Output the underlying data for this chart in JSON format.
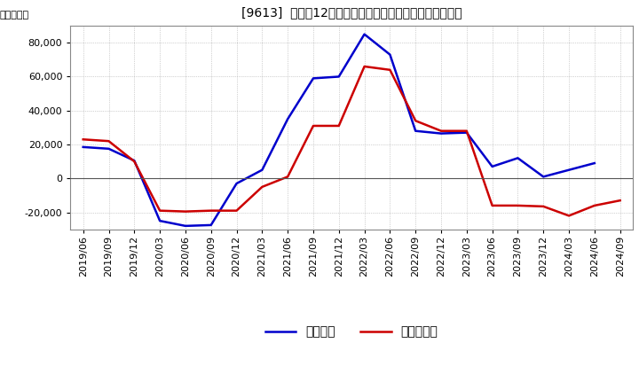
{
  "title": "[9613]  利益だ12か月移動合計の対前年同期増減額の推移",
  "ylabel": "（百万円）",
  "background_color": "#ffffff",
  "plot_bg_color": "#ffffff",
  "grid_color": "#aaaaaa",
  "zero_line_color": "#555555",
  "line_blue_color": "#0000cc",
  "line_red_color": "#cc0000",
  "legend_blue": "経常利益",
  "legend_red": "当期純利益",
  "x_labels": [
    "2019/06",
    "2019/09",
    "2019/12",
    "2020/03",
    "2020/06",
    "2020/09",
    "2020/12",
    "2021/03",
    "2021/06",
    "2021/09",
    "2021/12",
    "2022/03",
    "2022/06",
    "2022/09",
    "2022/12",
    "2023/03",
    "2023/06",
    "2023/09",
    "2023/12",
    "2024/03",
    "2024/06",
    "2024/09"
  ],
  "blue_values": [
    18500,
    17500,
    10500,
    -25000,
    -28000,
    -27500,
    -3000,
    5000,
    35000,
    59000,
    60000,
    85000,
    73000,
    28000,
    26500,
    27000,
    7000,
    12000,
    1000,
    5000,
    9000,
    null
  ],
  "red_values": [
    23000,
    22000,
    10000,
    -19000,
    -19500,
    -19000,
    -19000,
    -5000,
    1000,
    31000,
    31000,
    66000,
    64000,
    34000,
    28000,
    28000,
    -16000,
    -16000,
    -16500,
    -22000,
    -16000,
    -13000
  ],
  "ylim": [
    -30000,
    90000
  ],
  "yticks": [
    -20000,
    0,
    20000,
    40000,
    60000,
    80000
  ],
  "title_fontsize": 12,
  "axis_fontsize": 8,
  "legend_fontsize": 10
}
